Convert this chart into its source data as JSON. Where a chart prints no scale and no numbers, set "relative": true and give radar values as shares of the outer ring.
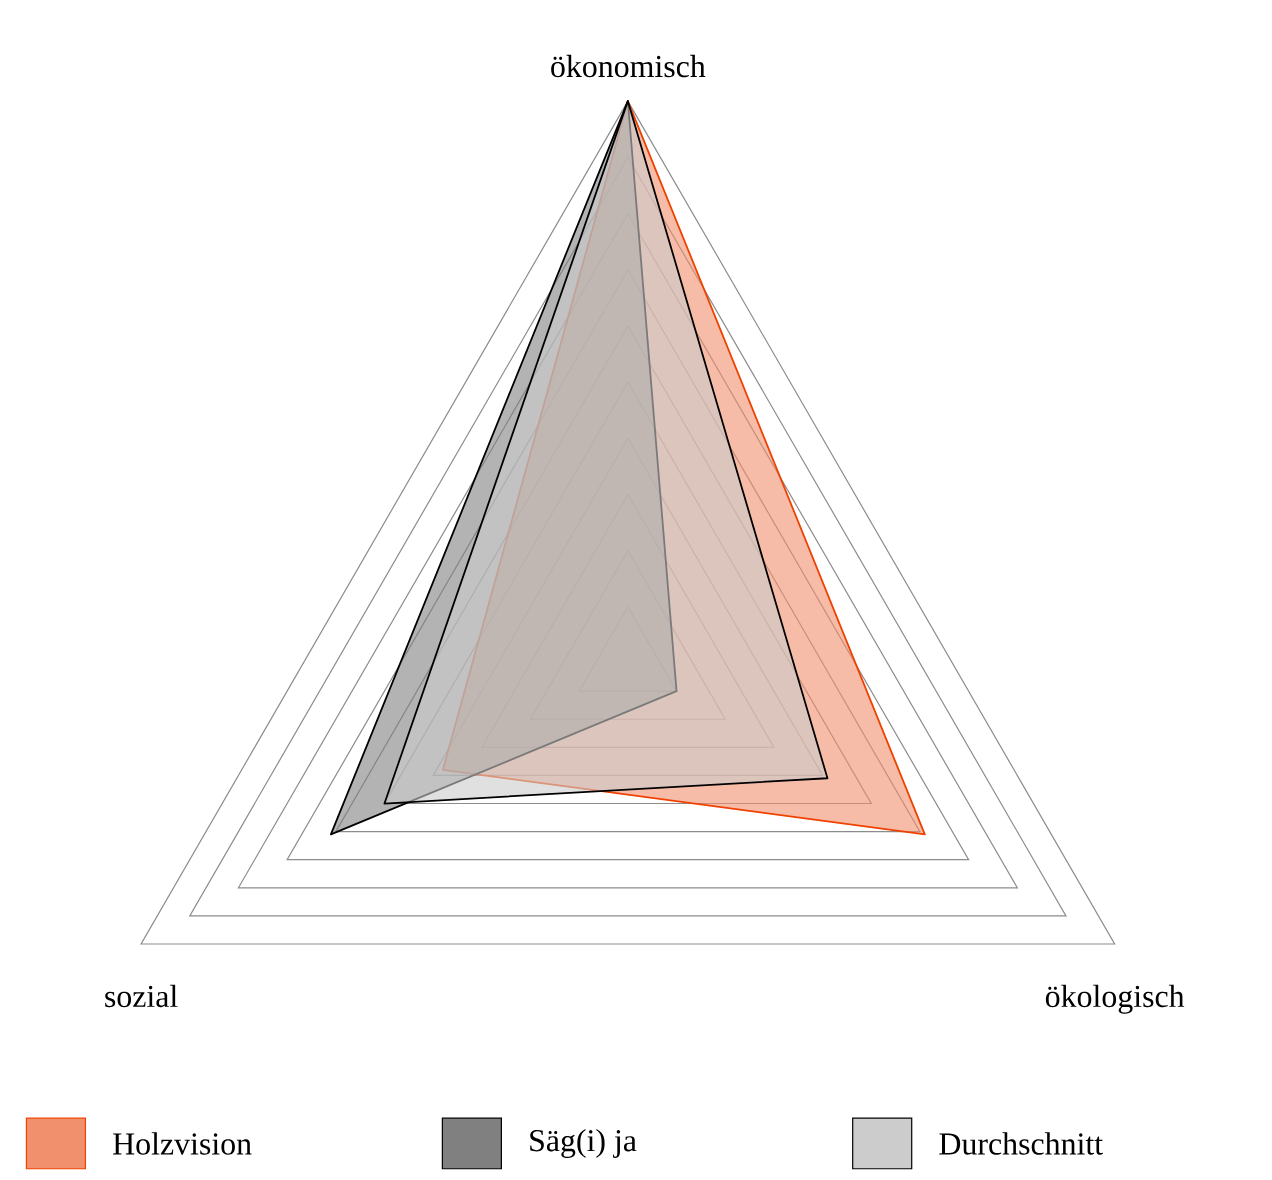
{
  "chart_data": {
    "type": "radar",
    "relative": true,
    "grid": true,
    "legend": "bottom",
    "categories": [
      "ökonomisch",
      "ökologisch",
      "sozial"
    ],
    "series": [
      {
        "name": "Holzvision",
        "color": "#f0906c",
        "values": [
          1.0,
          0.61,
          0.38
        ]
      },
      {
        "name": "Säg(i) ja",
        "color": "#808080",
        "values": [
          1.0,
          0.1,
          0.61
        ]
      },
      {
        "name": "Durchschnitt",
        "color": "#cccccc",
        "values": [
          1.0,
          0.41,
          0.5
        ]
      }
    ]
  }
}
